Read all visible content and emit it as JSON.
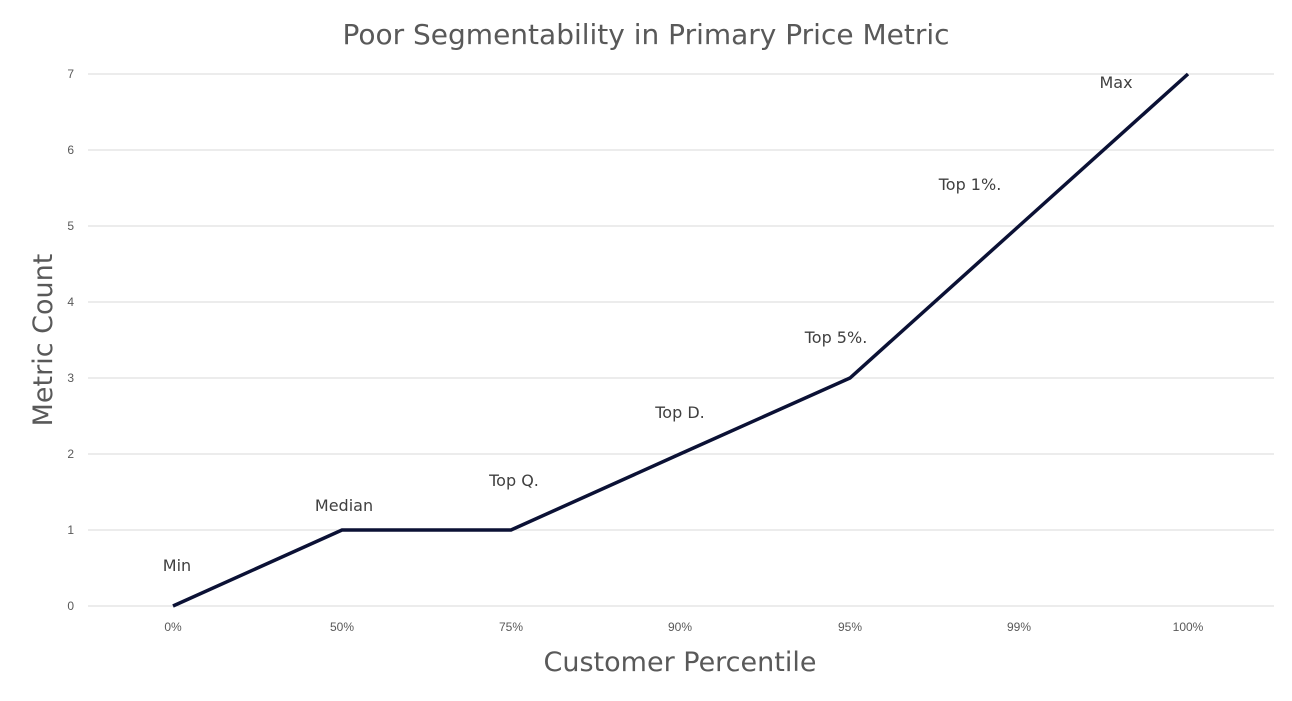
{
  "chart_data": {
    "type": "line",
    "title": "Poor Segmentability in Primary Price Metric",
    "xlabel": "Customer Percentile",
    "ylabel": "Metric Count",
    "categories": [
      "0%",
      "50%",
      "75%",
      "90%",
      "95%",
      "99%",
      "100%"
    ],
    "series": [
      {
        "values": [
          0,
          1,
          1,
          2,
          3,
          5,
          7
        ]
      }
    ],
    "annotations": [
      "Min",
      "Median",
      "Top Q.",
      "Top D.",
      "Top 5%.",
      "Top 1%.",
      "Max"
    ],
    "ylim": [
      0,
      7
    ],
    "yticks": [
      "0",
      "1",
      "2",
      "3",
      "4",
      "5",
      "6",
      "7"
    ],
    "grid": true,
    "legend": "none",
    "line_color": "#0b1135"
  }
}
